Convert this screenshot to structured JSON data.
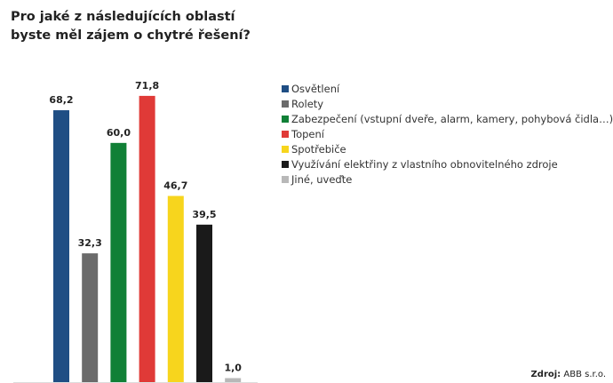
{
  "chart_data": {
    "type": "bar",
    "title": "Pro jaké z následujících oblastí\nbyste měl zájem o chytré řešení?",
    "categories": [
      "Osvětlení",
      "Rolety",
      "Zabezpečení (vstupní dveře, alarm, kamery, pohybová čidla…)",
      "Topení",
      "Spotřebiče",
      "Využívání elektřiny z vlastního obnovitelného zdroje",
      "Jiné, uveďte"
    ],
    "values": [
      68.2,
      32.3,
      60.0,
      71.8,
      46.7,
      39.5,
      1.0
    ],
    "value_labels": [
      "68,2",
      "32,3",
      "60,0",
      "71,8",
      "46,7",
      "39,5",
      "1,0"
    ],
    "colors": [
      "#1f4e84",
      "#6b6b6b",
      "#108036",
      "#e03a37",
      "#f7d51d",
      "#1a1a1a",
      "#b8b8b8"
    ],
    "ylim": [
      0,
      72
    ],
    "grid": false,
    "legend_placement": "right",
    "xlabel": "",
    "ylabel": ""
  },
  "source": {
    "label": "Zdroj:",
    "value": "ABB s.r.o."
  }
}
